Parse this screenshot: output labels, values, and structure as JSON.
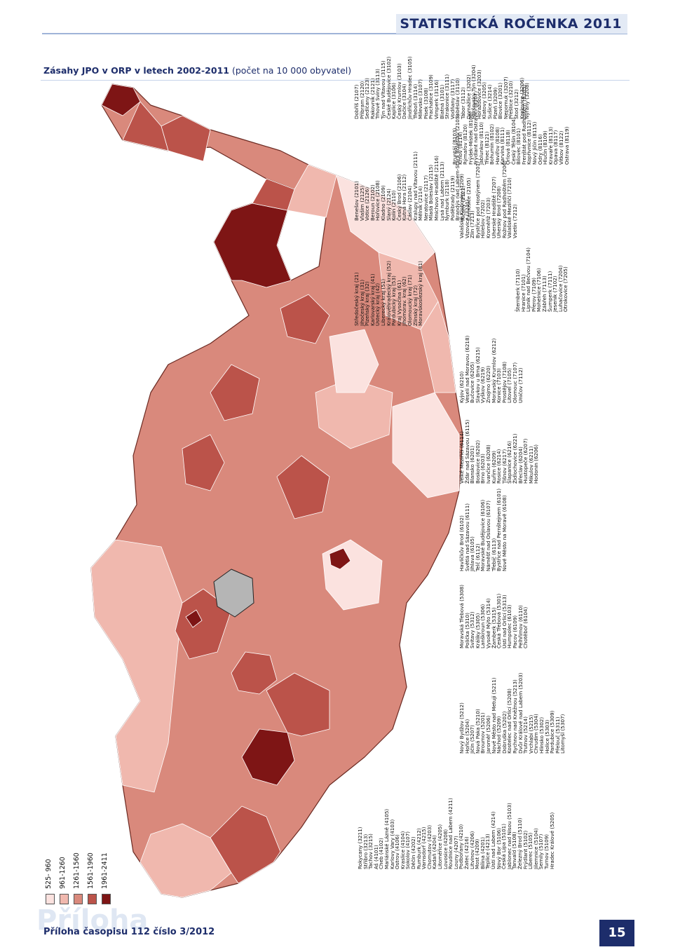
{
  "header": {
    "title": "STATISTICKÁ ROČENKA 2011"
  },
  "map_title": "Zásahy JPO v ORP v letech 2002-2011",
  "map_subtitle": "(počet na 10 000 obyvatel)",
  "legend": [
    {
      "label": "525- 960",
      "color": "#fbe2df"
    },
    {
      "label": "961-1260",
      "color": "#f0b8ae"
    },
    {
      "label": "1261-1560",
      "color": "#d9897c"
    },
    {
      "label": "1561-1960",
      "color": "#bb534a"
    },
    {
      "label": "1961-2411",
      "color": "#7e1515"
    }
  ],
  "lists": [
    [
      "Rokycany (3211)",
      "Stříbro (3213)",
      "Tachov (3215)",
      "Aš (4101)",
      "Cheb (4102)",
      "Mariánské Lázně (4105)",
      "Karlovy Vary (4103)",
      "Ostrov (4106)",
      "Kraslice (4104)",
      "Sokolov (4107)",
      "Děčín (4202)",
      "Rumburk (4212)",
      "Varnsdorf (4215)",
      "Chomutov (4203)",
      "Kadaň (4204)",
      "Litoměřice (4205)",
      "Lovosice (4208)",
      "Roudnice nad Labem (4211)",
      "Louny (4207)",
      "Podbořany (4210)",
      "Žatec (4216)",
      "Litvínov (4206)",
      "Most (4209)",
      "Bílina (4201)",
      "Teplice (4213)",
      "Ústí nad Labem (4214)",
      "Nový Bor (5106)",
      "Česká Lípa (5101)",
      "Jablonec nad Nisou (5103)",
      "Tanvald (5108)",
      "Železný Brod (5110)",
      "Frýdlant (5102)",
      "Liberec (5105)",
      "Jilemnice (5104)",
      "Semily (5107)",
      "Turnov (5109)",
      "Hradec Králové (5205)"
    ],
    [
      "Nový Bydžov (5212)",
      "Hořice (5204)",
      "Jičín (5207)",
      "Nová Paka (5210)",
      "Broumov (5201)",
      "Jaroměř (5206)",
      "Nové Město nad Metují (5211)",
      "Náchod (5209)",
      "Dobruška (5202)",
      "Kostelec nad Orlicí (5208)",
      "Rychnov nad Kněžnou (5213)",
      "Dvůr Králové nad Labem (5203)",
      "Trutnov (5214)",
      "Vrchlabí (5215)",
      "Chrudim (5304)",
      "Hlinsko (5302)",
      "Holice (5303)",
      "Pardubice (5309)",
      "Přelouč (5311)",
      "Litomyšl (5307)"
    ],
    [
      "Moravská Třebová (5308)",
      "Polička (5310)",
      "Svitavy (5312)",
      "Králíky (5305)",
      "Lanškroun (5306)",
      "Vysoké Mýto (5314)",
      "Žamberk (5315)",
      "Česká Třebová (5301)",
      "Ústí nad Orlicí (5313)",
      "Humpolec (6103)",
      "Pacov (6109)",
      "Pelhřimov (6110)",
      "Chotěboř (6104)"
    ],
    [
      "Havlíčkův Brod (6102)",
      "Světlá nad Sázavou (6111)",
      "Jihlava (6105)",
      "Telč (6112)",
      "Moravské Budějovice (6106)",
      "Náměšť nad Oslavou (6107)",
      "Třebíč (6113)",
      "Bystřice nad Pernštejnem (6101)",
      "Nové Město na Moravě (6108)"
    ],
    [
      "Velké Meziříčí (6114)",
      "Žďár nad Sázavou (6115)",
      "Blansko (6201)",
      "Boskovice (6202)",
      "Brno (6203)",
      "Ivančice (6208)",
      "Kuřim (6209)",
      "Rosice (6214)",
      "Tišnov (6217)",
      "Šlapanice (6216)",
      "Židlochovice (6221)",
      "Břeclav (6204)",
      "Hustopeče (6207)",
      "Mikulov (6211)",
      "Hodonín (6206)"
    ],
    [
      "Kyjov (6210)",
      "Veselí nad Moravou (6218)",
      "Bučovice (6205)",
      "Slavkov u Brna (6215)",
      "Vyškov (6219)",
      "Znojmo (6220)",
      "Moravský Krumlov (6212)",
      "Konice (7103)",
      "Prostějov (7108)",
      "Litovel (7105)",
      "Olomouc (7107)",
      "Uničov (7112)"
    ],
    [
      "Šternberk (7110)",
      "Hranice (7101)",
      "Lipník nad Bečvou (7104)",
      "Přerov (7109)",
      "Mohelnice (7106)",
      "Zábřeh (7113)",
      "Šumperk (7111)",
      "Jeseník (7102)",
      "Luhačovice (7204)",
      "Otrokovice (7205)"
    ],
    [
      "Valašské Klobouky (7209)",
      "Vizovice (7211)",
      "Zlín (7213)",
      "Bystřice pod Hostýnem (7201)",
      "Holešov (7202)",
      "Kroměříž (7203)",
      "Uherské Hradiště (7207)",
      "Uherský Brod (7208)",
      "Rožnov pod Radhoštěm (7206)",
      "Valašské Meziříčí (7210)",
      "Vsetín (7212)"
    ],
    [
      "Bruntál (8103)",
      "Krnov (8114)",
      "Rýmařov (8120)",
      "Frýdek-Místek (8106)",
      "Frýdlant nad Ostravicí (8107)",
      "Jablunkov (8110)",
      "Třinec (8121)",
      "Bohumín (8102)",
      "Havířov (8108)",
      "Karviná (8111)",
      "Orlová (8118)",
      "Český Těšín (8104)",
      "Bílovec (8101)",
      "Frenštát pod Radhoštěm (8105)",
      "Kopřivnice (8112)",
      "Nový Jičín (8115)",
      "Odry (8116)",
      "Hlučín (8109)",
      "Kravaře (8113)",
      "Opava (8117)",
      "Vítkov (8122)",
      "Ostrava (8119)"
    ],
    [
      "Středočeský kraj (21)",
      "Jihočeský kraj (31)",
      "Plzeňský kraj (32)",
      "Karlovarský kraj (41)",
      "Ústecký kraj (42)",
      "Liberecký kraj (51)",
      "Královéhradecký kraj (52)",
      "Pardubický kraj (53)",
      "Kraj Vysočina (61)",
      "Jihomorav. kraj (62)",
      "Olomoucký kraj (71)",
      "Zlínský kraj (72)",
      "Moravskoslezský kraj (81)"
    ],
    [
      "Benešov (2101)",
      "Vlašim (2125)",
      "Votice (2126)",
      "Beroun (2102)",
      "Hořovice (2108)",
      "Kladno (2109)",
      "Slaný (2124)",
      "Kolín (2110)",
      "Český Brod (2106)",
      "Kutná Hora (2112)",
      "Čáslav (2104)",
      "Kralupy nad Vltavou (2111)",
      "Mělník (2114)",
      "Neratovice (2117)",
      "Mladá Boleslav (2115)",
      "Mnichovo Hradiště (2116)",
      "Lysá nad Labem (2113)",
      "Nymburk (2118)",
      "Poděbrady (2119)",
      "Brandýs nad Labem-Stará Boleslav (2103)",
      "Říčany (2122)",
      "Černošice (2105)"
    ],
    [
      "Dobříš (2107)",
      "Příbram (2120)",
      "Sedlčany (2123)",
      "Rakovník (2121)",
      "Trhové Sviny (3113)",
      "Týn nad Vltavou (3115)",
      "České Budějovice (3102)",
      "Kaplice (3106)",
      "Český Krumlov (3103)",
      "Dačice (3104)",
      "Jindřichův Hradec (3105)",
      "Třeboň (3114)",
      "Milevsko (3107)",
      "Písek (3108)",
      "Prachatice (3109)",
      "Vimperk (3116)",
      "Blatná (3101)",
      "Strakonice (3111)",
      "Vodňany (3117)",
      "Soběslav (3110)",
      "Tábor (3112)",
      "Domažlice (3202)",
      "Horšovský Týn (3204)",
      "Horažďovice (3203)",
      "Klatovy (3205)",
      "Sušice (3214)",
      "Plzeň (3209)",
      "Blovice (3201)",
      "Nepomuk (3207)",
      "Přeštice (3210)",
      "Stod (3212)",
      "Kralovice (3206)",
      "Nýřany (3208)"
    ]
  ],
  "footer": {
    "watermark": "Příloha",
    "text": "Příloha časopisu 112 číslo 3/2012",
    "page": "15"
  }
}
